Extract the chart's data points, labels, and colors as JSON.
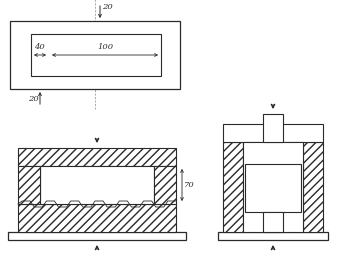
{
  "bg_color": "#ffffff",
  "line_color": "#2a2a2a",
  "figsize": [
    3.45,
    2.54
  ],
  "dpi": 100,
  "font_size": 6.0
}
